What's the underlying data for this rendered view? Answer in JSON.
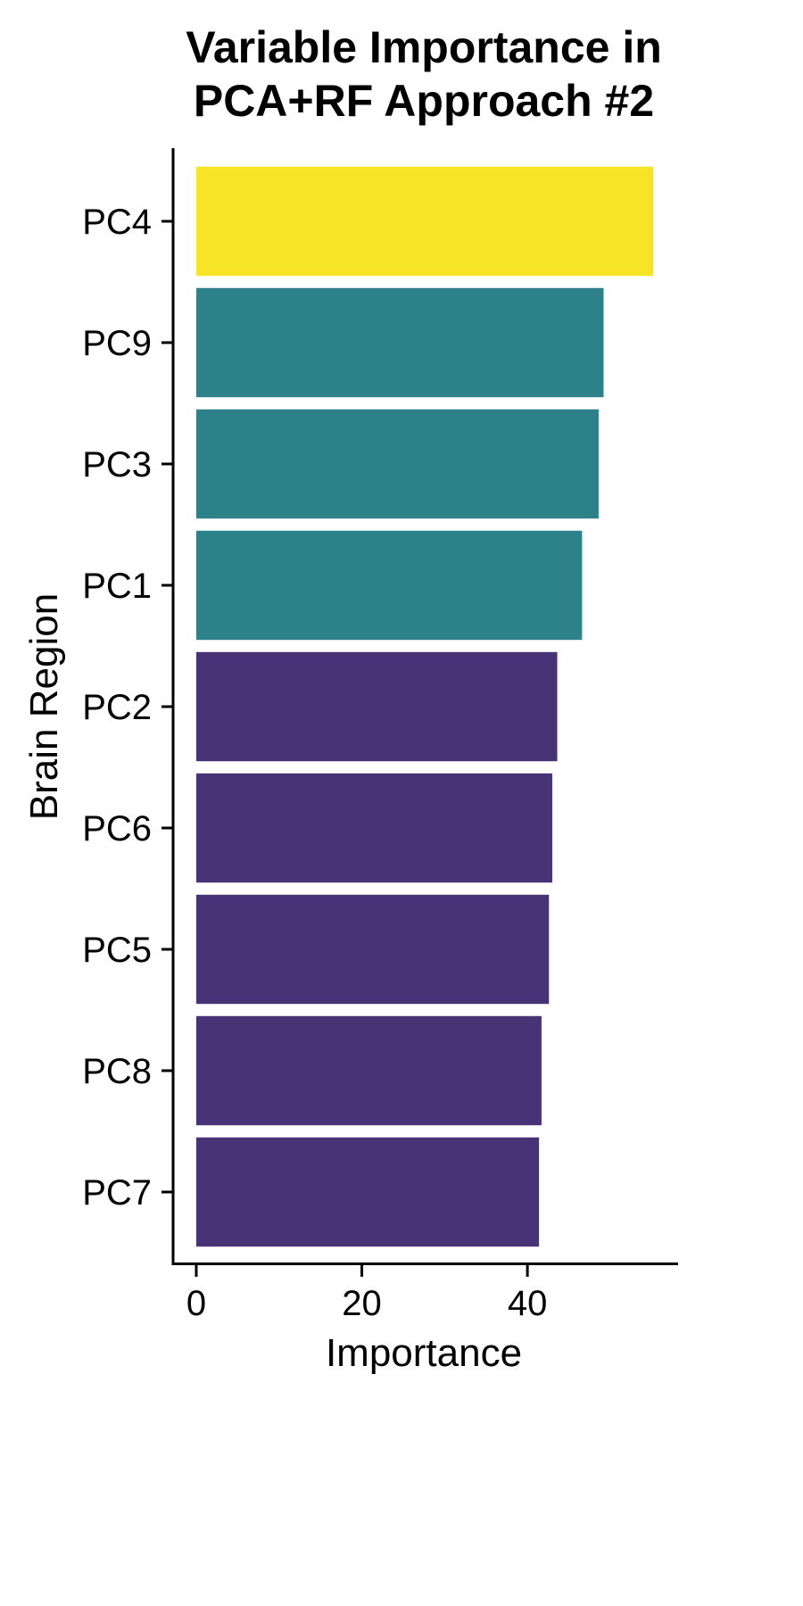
{
  "chart_data": {
    "type": "bar",
    "orientation": "horizontal",
    "title": [
      "Variable Importance in",
      "PCA+RF Approach #2"
    ],
    "xlabel": "Importance",
    "ylabel": "Brain Region",
    "categories": [
      "PC4",
      "PC9",
      "PC3",
      "PC1",
      "PC2",
      "PC6",
      "PC5",
      "PC8",
      "PC7"
    ],
    "values": [
      55.2,
      49.2,
      48.6,
      46.6,
      43.6,
      43.0,
      42.6,
      41.7,
      41.4
    ],
    "groups": [
      "top",
      "mid",
      "mid",
      "mid",
      "low",
      "low",
      "low",
      "low",
      "low"
    ],
    "group_colors": {
      "top": "#F5E526",
      "mid": "#2D8189",
      "low": "#473375"
    },
    "xlim": [
      -2.8,
      58.2
    ],
    "xticks": [
      0,
      20,
      40
    ],
    "xtick_labels": [
      "0",
      "20",
      "40"
    ],
    "grid": false,
    "legend": "none"
  }
}
